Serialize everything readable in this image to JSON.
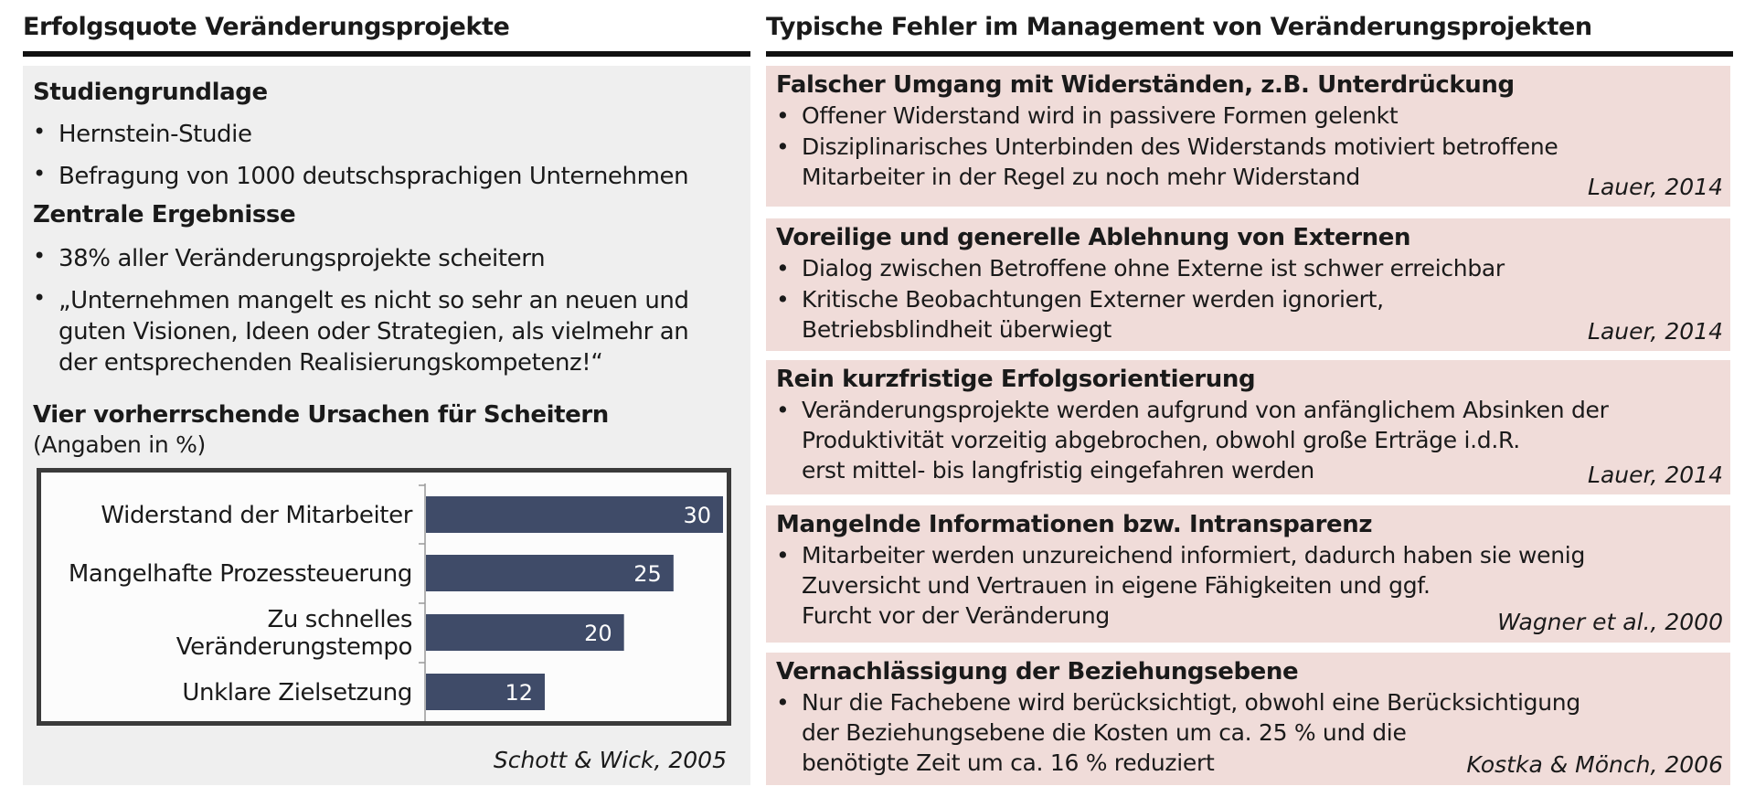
{
  "left": {
    "title": "Erfolgsquote Veränderungsprojekte",
    "study_heading": "Studiengrundlage",
    "study_bullets": [
      "Hernstein-Studie",
      "Befragung von 1000 deutschsprachigen Unternehmen"
    ],
    "results_heading": "Zentrale Ergebnisse",
    "results_bullet_1": "38% aller Veränderungsprojekte scheitern",
    "results_quote_lines": [
      "„Unternehmen mangelt es nicht so sehr an neuen und",
      "guten Visionen, Ideen oder Strategien, als vielmehr an",
      "der entsprechenden Realisierungskompetenz!“"
    ],
    "causes_heading": "Vier vorherrschende Ursachen für Scheitern",
    "causes_subheading": "(Angaben in %)",
    "citation": "Schott & Wick, 2005"
  },
  "chart_data": {
    "type": "bar",
    "orientation": "horizontal",
    "categories": [
      [
        "Widerstand der Mitarbeiter"
      ],
      [
        "Mangelhafte Prozessteuerung"
      ],
      [
        "Zu schnelles",
        "Veränderungstempo"
      ],
      [
        "Unklare Zielsetzung"
      ]
    ],
    "values": [
      30,
      25,
      20,
      12
    ],
    "xlim": [
      0,
      30
    ],
    "bar_color": "#3f4b68",
    "label_color": "#ffffff",
    "grid": false
  },
  "right": {
    "title": "Typische Fehler im Management von Veränderungsprojekten",
    "boxes": [
      {
        "heading": "Falscher Umgang mit Widerständen, z.B. Unterdrückung",
        "bullets": [
          [
            "Offener Widerstand wird in passivere Formen gelenkt"
          ],
          [
            "Disziplinarisches Unterbinden des Widerstands motiviert betroffene",
            "Mitarbeiter in der Regel zu noch mehr Widerstand"
          ]
        ],
        "citation": "Lauer, 2014"
      },
      {
        "heading": "Voreilige und generelle Ablehnung von Externen",
        "bullets": [
          [
            "Dialog zwischen Betroffene ohne Externe ist schwer erreichbar"
          ],
          [
            "Kritische Beobachtungen Externer werden ignoriert,",
            "Betriebsblindheit überwiegt"
          ]
        ],
        "citation": "Lauer, 2014"
      },
      {
        "heading": "Rein kurzfristige Erfolgsorientierung",
        "bullets": [
          [
            "Veränderungsprojekte werden aufgrund von anfänglichem Absinken der",
            "Produktivität vorzeitig abgebrochen, obwohl große Erträge i.d.R.",
            "erst mittel- bis langfristig eingefahren werden"
          ]
        ],
        "citation": "Lauer, 2014"
      },
      {
        "heading": "Mangelnde Informationen bzw. Intransparenz",
        "bullets": [
          [
            "Mitarbeiter werden unzureichend informiert, dadurch haben sie wenig",
            "Zuversicht und Vertrauen in eigene Fähigkeiten und ggf.",
            "Furcht vor der Veränderung"
          ]
        ],
        "citation": "Wagner et al., 2000"
      },
      {
        "heading": "Vernachlässigung der Beziehungsebene",
        "bullets": [
          [
            "Nur die Fachebene wird berücksichtigt, obwohl eine Berücksichtigung",
            "der Beziehungsebene die Kosten um ca. 25 % und die",
            "benötigte Zeit um ca. 16 % reduziert"
          ]
        ],
        "citation": "Kostka & Mönch, 2006"
      }
    ]
  }
}
